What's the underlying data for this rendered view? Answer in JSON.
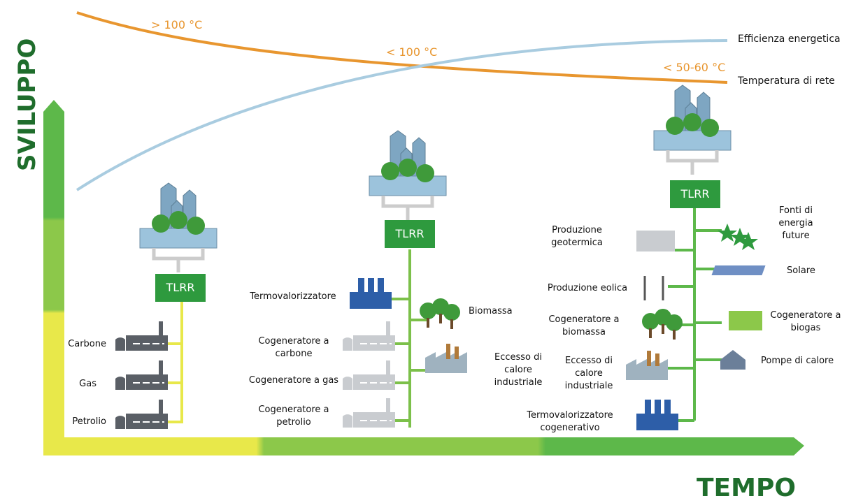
{
  "axes": {
    "y_label": "SVILUPPO",
    "x_label": "TEMPO"
  },
  "curves": {
    "efficiency_label": "Efficienza energetica",
    "temperature_label": "Temperatura di rete",
    "temperatures": [
      "> 100 °C",
      "< 100 °C",
      "< 50-60 °C"
    ]
  },
  "stages": [
    {
      "hub": "TLRR",
      "sources": [
        "Carbone",
        "Gas",
        "Petrolio"
      ]
    },
    {
      "hub": "TLRR",
      "sources": [
        "Termovalorizzatore",
        "Biomassa",
        "Cogeneratore a carbone",
        "Eccesso di calore industriale",
        "Cogeneratore a gas",
        "Cogeneratore a petrolio"
      ]
    },
    {
      "hub": "TLRR",
      "sources": [
        "Produzione geotermica",
        "Fonti di energia future",
        "Solare",
        "Produzione eolica",
        "Cogeneratore a biomassa",
        "Cogeneratore a biogas",
        "Eccesso di calore industriale",
        "Pompe di calore",
        "Termovalorizzatore cogenerativo"
      ]
    }
  ]
}
